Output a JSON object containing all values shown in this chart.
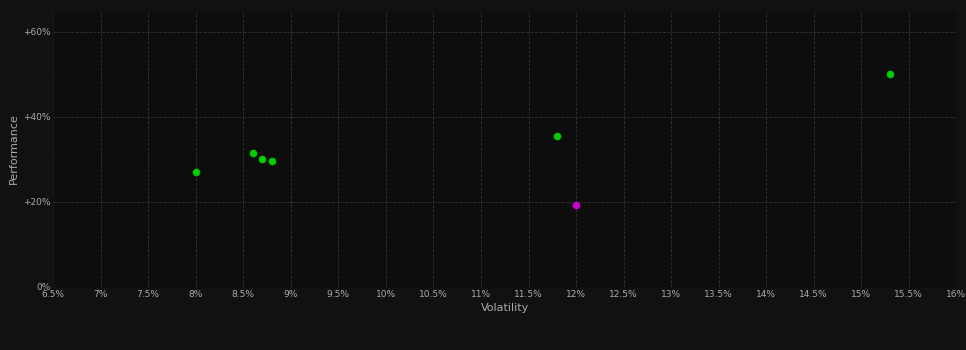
{
  "background_color": "#111111",
  "plot_bg_color": "#0d0d0d",
  "grid_color": "#333333",
  "text_color": "#aaaaaa",
  "xlabel": "Volatility",
  "ylabel": "Performance",
  "xlim": [
    0.065,
    0.16
  ],
  "ylim": [
    0.0,
    0.65
  ],
  "xticks": [
    0.065,
    0.07,
    0.075,
    0.08,
    0.085,
    0.09,
    0.095,
    0.1,
    0.105,
    0.11,
    0.115,
    0.12,
    0.125,
    0.13,
    0.135,
    0.14,
    0.145,
    0.15,
    0.155,
    0.16
  ],
  "yticks": [
    0.0,
    0.2,
    0.4,
    0.6
  ],
  "ytick_labels": [
    "0%",
    "+20%",
    "+40%",
    "+60%"
  ],
  "xtick_labels": [
    "6.5%",
    "7%",
    "7.5%",
    "8%",
    "8.5%",
    "9%",
    "9.5%",
    "10%",
    "10.5%",
    "11%",
    "11.5%",
    "12%",
    "12.5%",
    "13%",
    "13.5%",
    "14%",
    "14.5%",
    "15%",
    "15.5%",
    "16%"
  ],
  "green_points": [
    [
      0.08,
      0.27
    ],
    [
      0.086,
      0.316
    ],
    [
      0.087,
      0.302
    ],
    [
      0.088,
      0.296
    ],
    [
      0.118,
      0.355
    ],
    [
      0.153,
      0.5
    ]
  ],
  "magenta_points": [
    [
      0.12,
      0.192
    ]
  ],
  "green_color": "#00cc00",
  "magenta_color": "#cc00cc",
  "marker_size": 30
}
